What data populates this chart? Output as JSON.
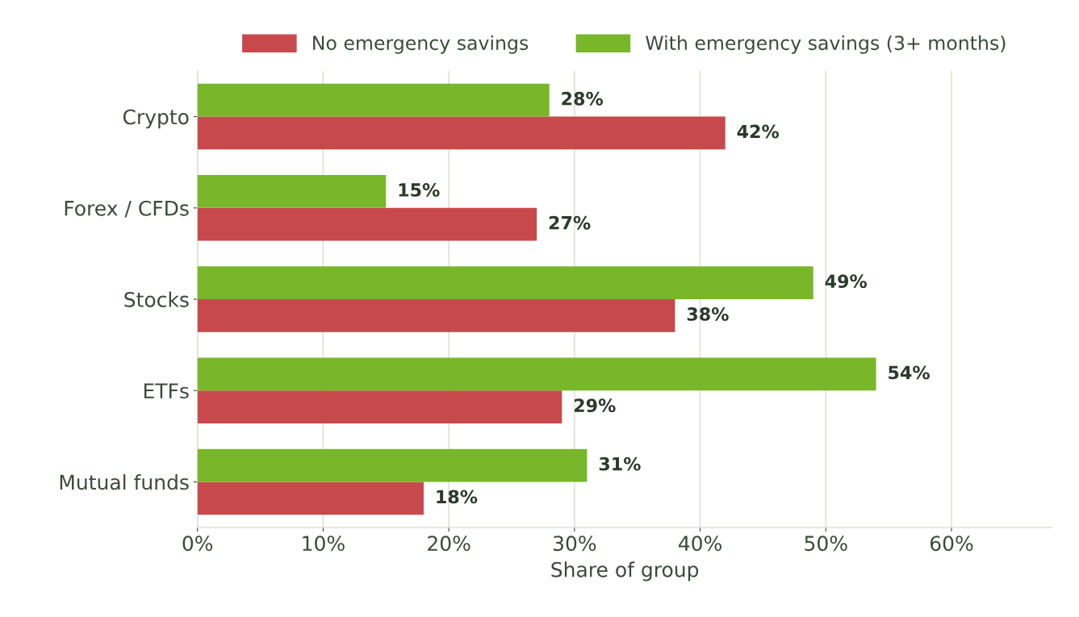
{
  "chart_data": {
    "type": "bar",
    "orientation": "horizontal",
    "xlabel": "Share of group",
    "categories": [
      "Crypto",
      "Forex / CFDs",
      "Stocks",
      "ETFs",
      "Mutual funds"
    ],
    "series": [
      {
        "name": "No emergency savings",
        "color": "#c8494b",
        "values": [
          42,
          27,
          38,
          29,
          18
        ],
        "value_labels": [
          "42%",
          "27%",
          "38%",
          "29%",
          "18%"
        ]
      },
      {
        "name": "With emergency savings (3+ months)",
        "color": "#78b72a",
        "values": [
          28,
          15,
          49,
          54,
          31
        ],
        "value_labels": [
          "28%",
          "15%",
          "49%",
          "54%",
          "31%"
        ]
      }
    ],
    "xlim": [
      0,
      68
    ],
    "xticks": [
      {
        "value": 0,
        "label": "0%"
      },
      {
        "value": 10,
        "label": "10%"
      },
      {
        "value": 20,
        "label": "20%"
      },
      {
        "value": 30,
        "label": "30%"
      },
      {
        "value": 40,
        "label": "40%"
      },
      {
        "value": 50,
        "label": "50%"
      },
      {
        "value": 60,
        "label": "60%"
      }
    ],
    "grid": "x",
    "legend": "top"
  }
}
